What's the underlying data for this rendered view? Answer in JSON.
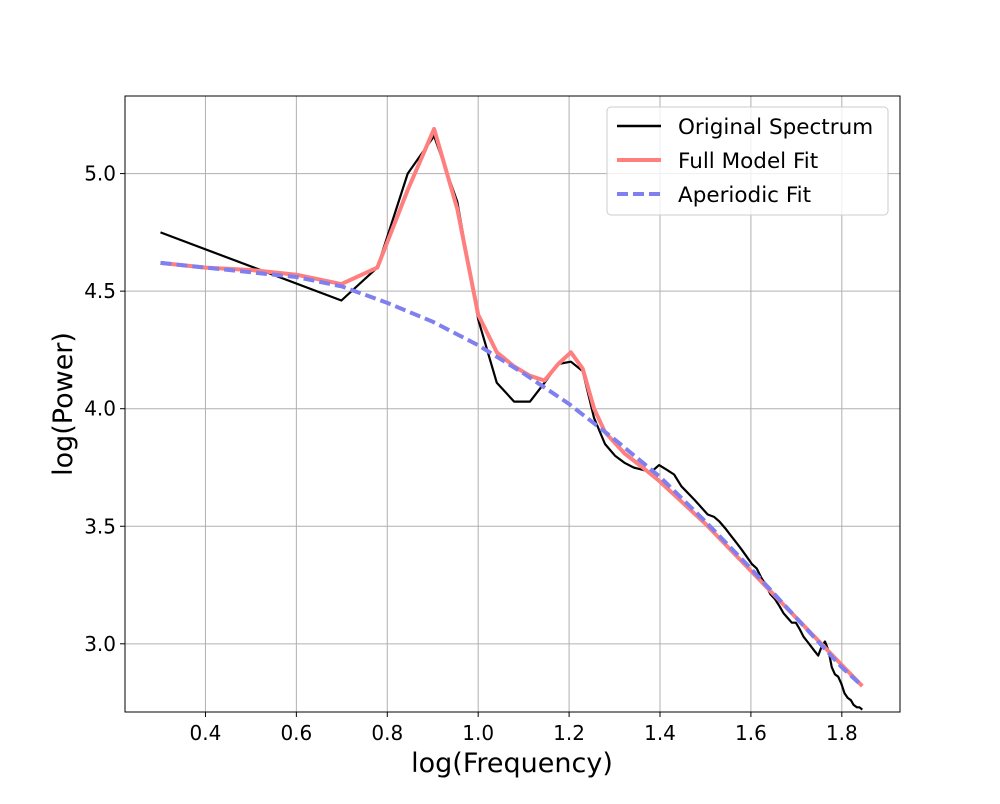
{
  "chart_data": {
    "type": "line",
    "title": "",
    "xlabel": "log(Frequency)",
    "ylabel": "log(Power)",
    "xlim": [
      0.223,
      1.928
    ],
    "ylim": [
      2.71,
      5.33
    ],
    "xticks": [
      0.4,
      0.6,
      0.8,
      1.0,
      1.2,
      1.4,
      1.6,
      1.8
    ],
    "xtick_labels": [
      "0.4",
      "0.6",
      "0.8",
      "1.0",
      "1.2",
      "1.4",
      "1.6",
      "1.8"
    ],
    "yticks": [
      3.0,
      3.5,
      4.0,
      4.5,
      5.0
    ],
    "ytick_labels": [
      "3.0",
      "3.5",
      "4.0",
      "4.5",
      "5.0"
    ],
    "grid": true,
    "legend_position": "top-right",
    "series": [
      {
        "name": "Original Spectrum",
        "color": "#000000",
        "style": "solid",
        "x": [
          0.301,
          0.699,
          0.778,
          0.845,
          0.903,
          0.954,
          1.0,
          1.041,
          1.079,
          1.114,
          1.146,
          1.176,
          1.204,
          1.23,
          1.255,
          1.279,
          1.301,
          1.322,
          1.342,
          1.362,
          1.38,
          1.398,
          1.415,
          1.431,
          1.447,
          1.462,
          1.477,
          1.491,
          1.505,
          1.519,
          1.531,
          1.544,
          1.556,
          1.568,
          1.58,
          1.591,
          1.602,
          1.613,
          1.623,
          1.633,
          1.643,
          1.653,
          1.663,
          1.672,
          1.681,
          1.69,
          1.699,
          1.708,
          1.716,
          1.724,
          1.732,
          1.74,
          1.748,
          1.756,
          1.763,
          1.771,
          1.778,
          1.785,
          1.792,
          1.799,
          1.806,
          1.813,
          1.82,
          1.826,
          1.833,
          1.839,
          1.845
        ],
        "y": [
          4.75,
          4.46,
          4.6,
          5.0,
          5.16,
          4.88,
          4.38,
          4.11,
          4.03,
          4.03,
          4.11,
          4.19,
          4.2,
          4.16,
          3.96,
          3.85,
          3.8,
          3.77,
          3.75,
          3.74,
          3.73,
          3.76,
          3.74,
          3.72,
          3.67,
          3.64,
          3.61,
          3.58,
          3.55,
          3.54,
          3.52,
          3.49,
          3.46,
          3.43,
          3.4,
          3.37,
          3.34,
          3.32,
          3.28,
          3.25,
          3.21,
          3.19,
          3.16,
          3.13,
          3.11,
          3.09,
          3.09,
          3.06,
          3.03,
          3.01,
          2.99,
          2.97,
          2.95,
          2.99,
          3.01,
          2.97,
          2.9,
          2.87,
          2.86,
          2.83,
          2.79,
          2.77,
          2.76,
          2.74,
          2.73,
          2.73,
          2.72
        ]
      },
      {
        "name": "Full Model Fit",
        "color": "#ff7f7f",
        "style": "solid",
        "x": [
          0.301,
          0.4,
          0.5,
          0.6,
          0.699,
          0.778,
          0.845,
          0.903,
          0.954,
          1.0,
          1.041,
          1.079,
          1.114,
          1.146,
          1.176,
          1.204,
          1.23,
          1.255,
          1.279,
          1.322,
          1.362,
          1.4,
          1.45,
          1.5,
          1.55,
          1.6,
          1.65,
          1.7,
          1.75,
          1.8,
          1.845
        ],
        "y": [
          4.62,
          4.6,
          4.59,
          4.57,
          4.53,
          4.6,
          4.93,
          5.19,
          4.85,
          4.4,
          4.24,
          4.18,
          4.14,
          4.12,
          4.19,
          4.24,
          4.17,
          4.0,
          3.9,
          3.81,
          3.75,
          3.69,
          3.6,
          3.51,
          3.41,
          3.31,
          3.21,
          3.11,
          3.01,
          2.91,
          2.82
        ]
      },
      {
        "name": "Aperiodic Fit",
        "color": "#7f7ff0",
        "style": "dashed",
        "x": [
          0.301,
          0.4,
          0.5,
          0.6,
          0.7,
          0.8,
          0.9,
          1.0,
          1.1,
          1.2,
          1.3,
          1.4,
          1.5,
          1.6,
          1.7,
          1.8,
          1.845
        ],
        "y": [
          4.62,
          4.6,
          4.58,
          4.56,
          4.52,
          4.45,
          4.37,
          4.27,
          4.15,
          4.02,
          3.87,
          3.71,
          3.52,
          3.32,
          3.11,
          2.9,
          2.82
        ]
      }
    ]
  }
}
